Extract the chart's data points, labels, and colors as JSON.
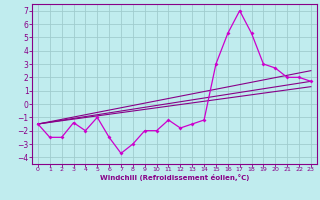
{
  "xlabel": "Windchill (Refroidissement éolien,°C)",
  "bg_color": "#c0ecee",
  "grid_color": "#a0ccce",
  "line_color": "#cc00cc",
  "line_color2": "#880088",
  "xlim": [
    -0.5,
    23.5
  ],
  "ylim": [
    -4.5,
    7.5
  ],
  "yticks": [
    -4,
    -3,
    -2,
    -1,
    0,
    1,
    2,
    3,
    4,
    5,
    6,
    7
  ],
  "xticks": [
    0,
    1,
    2,
    3,
    4,
    5,
    6,
    7,
    8,
    9,
    10,
    11,
    12,
    13,
    14,
    15,
    16,
    17,
    18,
    19,
    20,
    21,
    22,
    23
  ],
  "series1_x": [
    0,
    1,
    2,
    3,
    4,
    5,
    6,
    7,
    8,
    9,
    10,
    11,
    12,
    13,
    14,
    15,
    16,
    17,
    18,
    19,
    20,
    21,
    22,
    23
  ],
  "series1_y": [
    -1.5,
    -2.5,
    -2.5,
    -1.4,
    -2.0,
    -1.0,
    -2.5,
    -3.7,
    -3.0,
    -2.0,
    -2.0,
    -1.2,
    -1.8,
    -1.5,
    -1.2,
    3.0,
    5.3,
    7.0,
    5.3,
    3.0,
    2.7,
    2.0,
    2.0,
    1.7
  ],
  "series2_x": [
    0,
    23
  ],
  "series2_y": [
    -1.5,
    1.7
  ],
  "series3_x": [
    0,
    23
  ],
  "series3_y": [
    -1.5,
    2.5
  ],
  "series4_x": [
    0,
    23
  ],
  "series4_y": [
    -1.5,
    1.3
  ]
}
